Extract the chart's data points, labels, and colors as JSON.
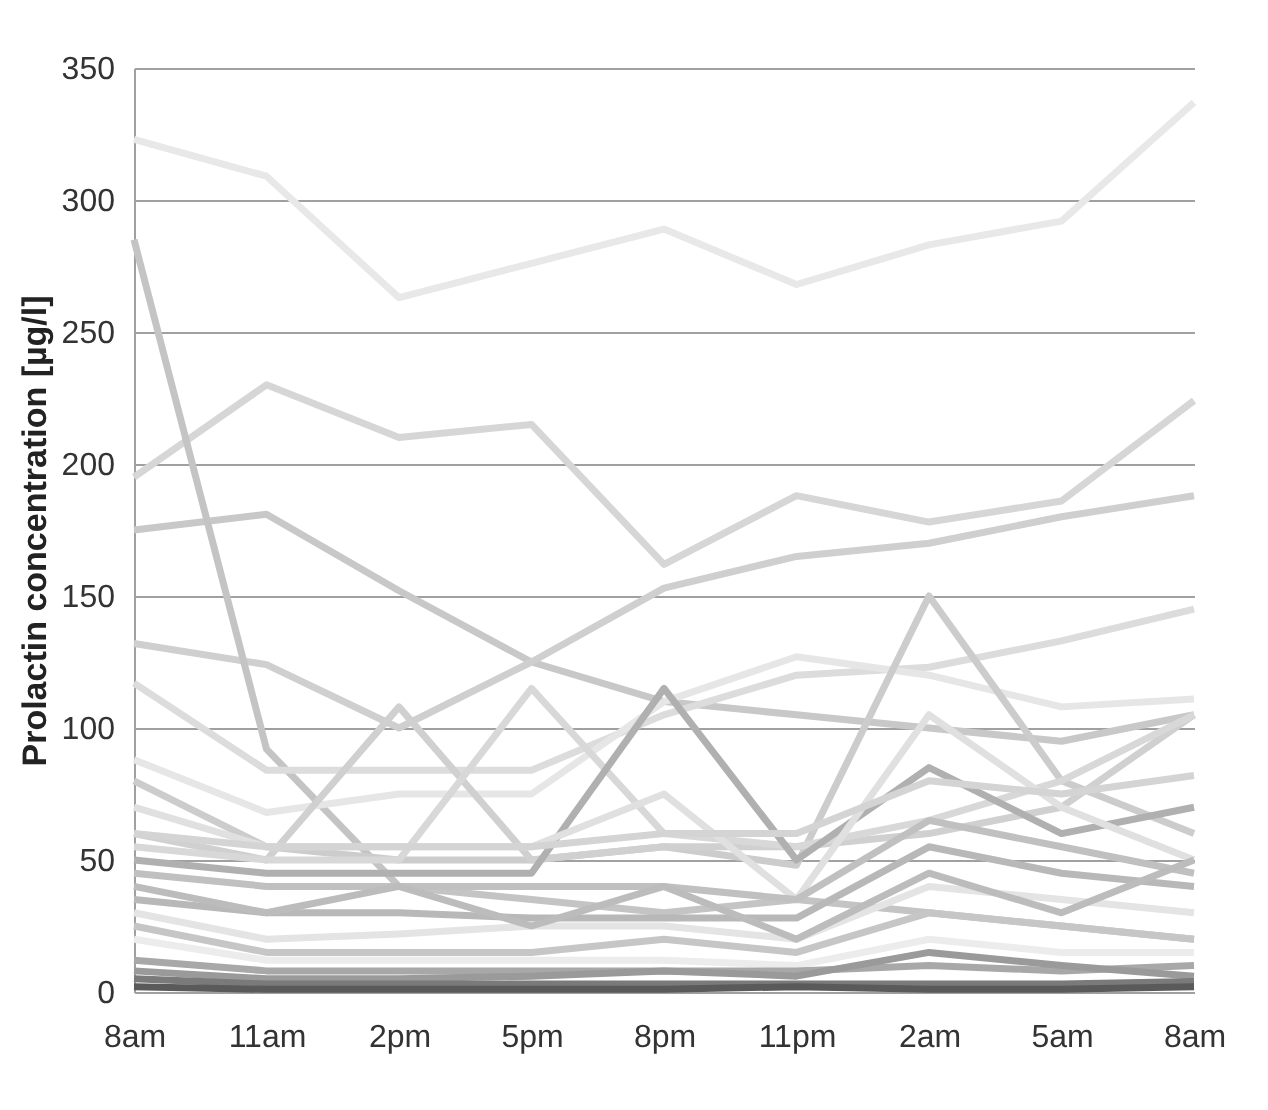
{
  "chart_data": {
    "type": "line",
    "ylabel": "Prolactin concentration [µg/l]",
    "categories": [
      "8am",
      "11am",
      "2pm",
      "5pm",
      "8pm",
      "11pm",
      "2am",
      "5am",
      "8am"
    ],
    "ylim": [
      0,
      350
    ],
    "yticks": [
      0,
      50,
      100,
      150,
      200,
      250,
      300,
      350
    ],
    "grid": "y",
    "legend": false,
    "marker": "none",
    "line_style": "solid",
    "series": [
      {
        "color": "#e8e8e8",
        "values": [
          323,
          309,
          263,
          276,
          289,
          268,
          283,
          292,
          337
        ]
      },
      {
        "color": "#d6d6d6",
        "values": [
          195,
          230,
          210,
          215,
          162,
          188,
          178,
          186,
          224
        ]
      },
      {
        "color": "#c8c8c8",
        "values": [
          175,
          181,
          152,
          125,
          110,
          105,
          100,
          95,
          105
        ]
      },
      {
        "color": "#cfcfcf",
        "values": [
          132,
          124,
          100,
          125,
          153,
          165,
          170,
          180,
          188
        ]
      },
      {
        "color": "#c4c4c4",
        "values": [
          285,
          92,
          40,
          35,
          30,
          35,
          30,
          25,
          20
        ]
      },
      {
        "color": "#dcdcdc",
        "values": [
          117,
          84,
          84,
          84,
          105,
          120,
          123,
          133,
          145
        ]
      },
      {
        "color": "#e6e6e6",
        "values": [
          88,
          68,
          75,
          75,
          110,
          127,
          120,
          108,
          111
        ]
      },
      {
        "color": "#cccccc",
        "values": [
          80,
          55,
          50,
          50,
          55,
          48,
          150,
          80,
          60
        ]
      },
      {
        "color": "#d0d0d0",
        "values": [
          60,
          50,
          108,
          50,
          55,
          55,
          60,
          70,
          105
        ]
      },
      {
        "color": "#d8d8d8",
        "values": [
          55,
          50,
          50,
          115,
          60,
          55,
          65,
          80,
          105
        ]
      },
      {
        "color": "#b0b0b0",
        "values": [
          50,
          45,
          45,
          45,
          115,
          50,
          85,
          60,
          70
        ]
      },
      {
        "color": "#e0e0e0",
        "values": [
          70,
          55,
          55,
          55,
          75,
          35,
          105,
          70,
          50
        ]
      },
      {
        "color": "#d4d4d4",
        "values": [
          60,
          55,
          55,
          55,
          60,
          60,
          80,
          75,
          82
        ]
      },
      {
        "color": "#c0c0c0",
        "values": [
          45,
          40,
          40,
          40,
          40,
          35,
          65,
          55,
          45
        ]
      },
      {
        "color": "#b8b8b8",
        "values": [
          35,
          30,
          30,
          28,
          28,
          28,
          55,
          45,
          40
        ]
      },
      {
        "color": "#e4e4e4",
        "values": [
          30,
          20,
          22,
          25,
          25,
          20,
          40,
          35,
          30
        ]
      },
      {
        "color": "#bcbcbc",
        "values": [
          40,
          30,
          40,
          25,
          40,
          20,
          45,
          30,
          50
        ]
      },
      {
        "color": "#c6c6c6",
        "values": [
          25,
          15,
          15,
          15,
          20,
          15,
          30,
          25,
          20
        ]
      },
      {
        "color": "#ececec",
        "values": [
          20,
          12,
          12,
          12,
          12,
          10,
          20,
          15,
          15
        ]
      },
      {
        "color": "#a8a8a8",
        "values": [
          12,
          8,
          8,
          8,
          8,
          8,
          10,
          8,
          10
        ]
      },
      {
        "color": "#9a9a9a",
        "values": [
          8,
          5,
          5,
          6,
          8,
          6,
          15,
          10,
          6
        ]
      },
      {
        "color": "#7a7a7a",
        "values": [
          5,
          3,
          3,
          3,
          3,
          3,
          3,
          3,
          4
        ]
      },
      {
        "color": "#5a5a5a",
        "values": [
          2,
          1,
          1,
          1,
          1,
          2,
          1,
          1,
          2
        ]
      }
    ]
  }
}
